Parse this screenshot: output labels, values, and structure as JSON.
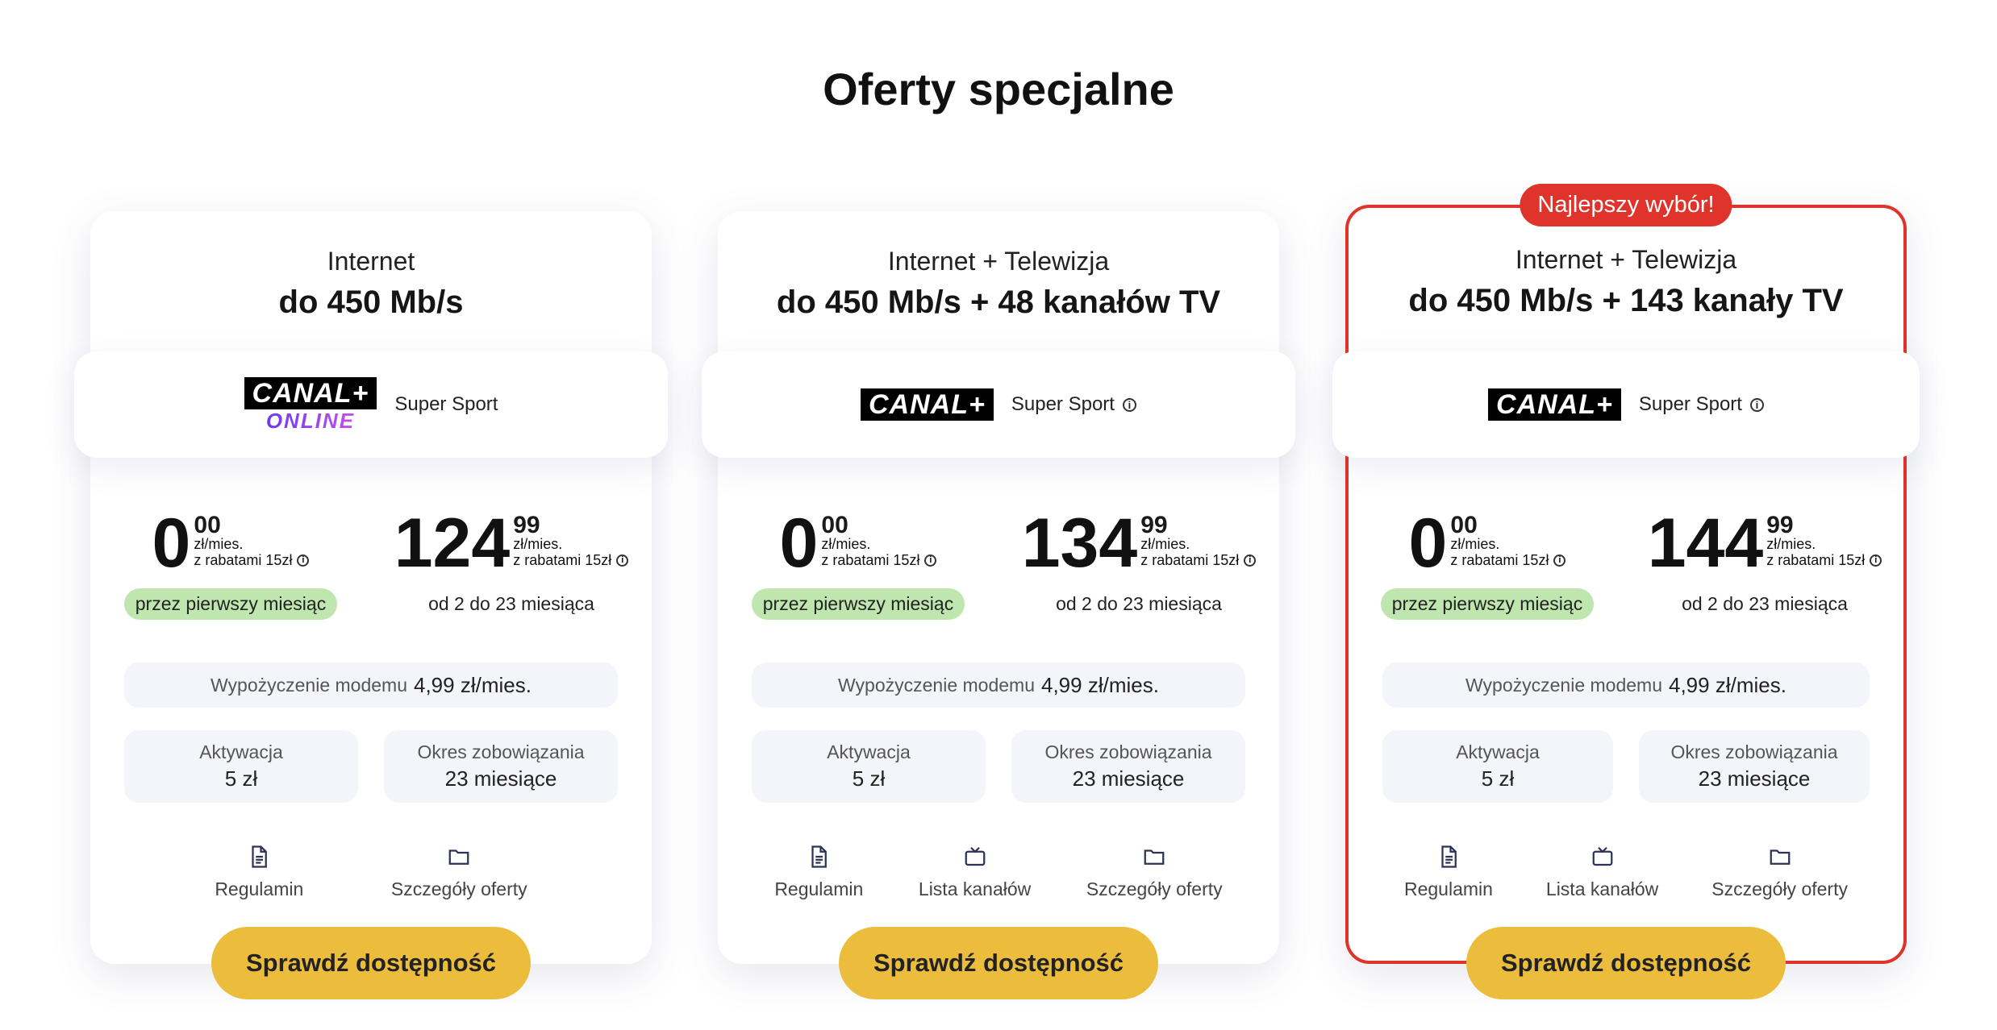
{
  "page": {
    "title": "Oferty specjalne"
  },
  "cards": [
    {
      "subtitle": "Internet",
      "main": "do 450 Mb/s",
      "channel_label": "Super Sport",
      "logo_canal": "CANAL+",
      "logo_online": "ONLINE",
      "price1": {
        "int": "0",
        "dec": "00",
        "unit": "zł/mies.",
        "discount": "z rabatami 15zł",
        "note": "przez pierwszy miesiąc"
      },
      "price2": {
        "int": "124",
        "dec": "99",
        "unit": "zł/mies.",
        "discount": "z rabatami 15zł",
        "note": "od 2 do 23 miesiąca"
      },
      "modem_label": "Wypożyczenie modemu",
      "modem_value": "4,99 zł/mies.",
      "activation_label": "Aktywacja",
      "activation_value": "5 zł",
      "commitment_label": "Okres zobowiązania",
      "commitment_value": "23 miesiące",
      "link_terms": "Regulamin",
      "link_details": "Szczegóły oferty",
      "cta": "Sprawdź dostępność"
    },
    {
      "subtitle": "Internet + Telewizja",
      "main": "do 450 Mb/s + 48 kanałów TV",
      "channel_label": "Super Sport",
      "logo_canal": "CANAL+",
      "price1": {
        "int": "0",
        "dec": "00",
        "unit": "zł/mies.",
        "discount": "z rabatami 15zł",
        "note": "przez pierwszy miesiąc"
      },
      "price2": {
        "int": "134",
        "dec": "99",
        "unit": "zł/mies.",
        "discount": "z rabatami 15zł",
        "note": "od 2 do 23 miesiąca"
      },
      "modem_label": "Wypożyczenie modemu",
      "modem_value": "4,99 zł/mies.",
      "activation_label": "Aktywacja",
      "activation_value": "5 zł",
      "commitment_label": "Okres zobowiązania",
      "commitment_value": "23 miesiące",
      "link_terms": "Regulamin",
      "link_channels": "Lista kanałów",
      "link_details": "Szczegóły oferty",
      "cta": "Sprawdź dostępność"
    },
    {
      "badge": "Najlepszy wybór!",
      "subtitle": "Internet + Telewizja",
      "main": "do 450 Mb/s + 143 kanały TV",
      "channel_label": "Super Sport",
      "logo_canal": "CANAL+",
      "price1": {
        "int": "0",
        "dec": "00",
        "unit": "zł/mies.",
        "discount": "z rabatami 15zł",
        "note": "przez pierwszy miesiąc"
      },
      "price2": {
        "int": "144",
        "dec": "99",
        "unit": "zł/mies.",
        "discount": "z rabatami 15zł",
        "note": "od 2 do 23 miesiąca"
      },
      "modem_label": "Wypożyczenie modemu",
      "modem_value": "4,99 zł/mies.",
      "activation_label": "Aktywacja",
      "activation_value": "5 zł",
      "commitment_label": "Okres zobowiązania",
      "commitment_value": "23 miesiące",
      "link_terms": "Regulamin",
      "link_channels": "Lista kanałów",
      "link_details": "Szczegóły oferty",
      "cta": "Sprawdź dostępność"
    }
  ],
  "icons": {
    "terms": "document-icon",
    "channels": "tv-icon",
    "details": "folder-icon",
    "info": "info-icon"
  },
  "colors": {
    "accent": "#e0332b",
    "cta": "#ecbd3c",
    "green_pill": "#bfe6ae",
    "box_bg": "#f4f5fb"
  }
}
